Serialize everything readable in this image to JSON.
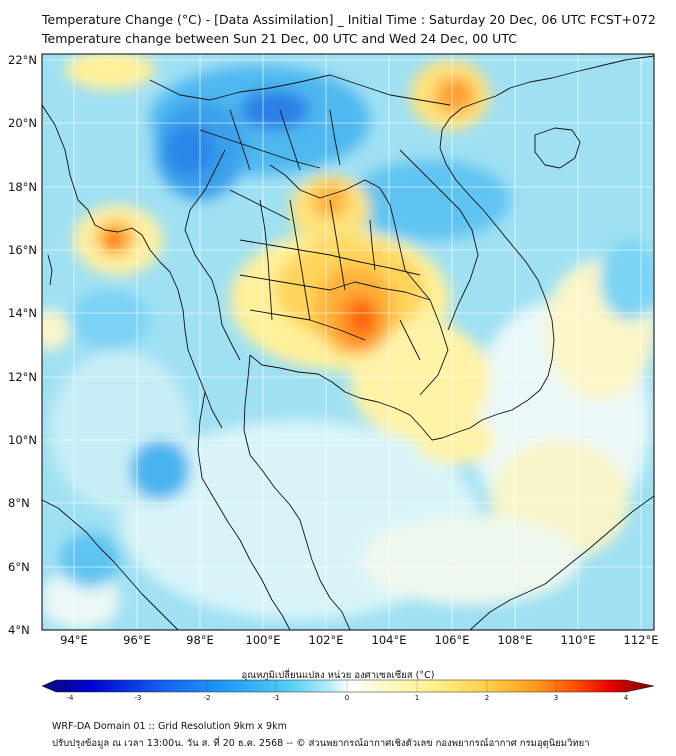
{
  "header": {
    "title_line1": "Temperature Change (°C) - [Data Assimilation] _ Initial Time : Saturday 20 Dec, 06 UTC FCST+072",
    "title_line2": "Temperature change between Sun 21 Dec, 00 UTC and Wed 24 Dec, 00 UTC"
  },
  "map": {
    "lat_labels": [
      "22°N",
      "20°N",
      "18°N",
      "16°N",
      "14°N",
      "12°N",
      "10°N",
      "8°N",
      "6°N",
      "4°N"
    ],
    "lon_labels": [
      "94°E",
      "96°E",
      "98°E",
      "100°E",
      "102°E",
      "104°E",
      "106°E",
      "108°E",
      "110°E",
      "112°E"
    ],
    "lat_range": [
      4,
      22.2
    ],
    "lon_range": [
      93,
      112.5
    ],
    "grid": true
  },
  "colorbar": {
    "title": "อุณหภูมิเปลี่ยนแปลง หน่วย องศาเซลเซียส (°C)",
    "ticks": [
      "-4",
      "-3",
      "-2",
      "-1",
      "0",
      "1",
      "2",
      "3",
      "4"
    ],
    "range": [
      -4,
      4
    ],
    "colors": [
      "#0a0a78",
      "#0000d2",
      "#1464f0",
      "#1e9bf5",
      "#50cdf5",
      "#96e6f5",
      "#d2f5f5",
      "#ffffff",
      "#fafac8",
      "#fff08c",
      "#ffd24b",
      "#ffa01e",
      "#ff5000",
      "#e60000",
      "#a00000",
      "#6e0000"
    ]
  },
  "footer": {
    "line1": "WRF-DA Domain 01 :: Grid Resolution 9km x 9km",
    "line2": "ปรับปรุงข้อมูล ณ เวลา 13:00น. วัน ส. ที่ 20 ธ.ค. 2568 -- © ส่วนพยากรณ์อากาศเชิงตัวเลข กองพยากรณ์อากาศ กรมอุตุนิยมวิทยา"
  }
}
